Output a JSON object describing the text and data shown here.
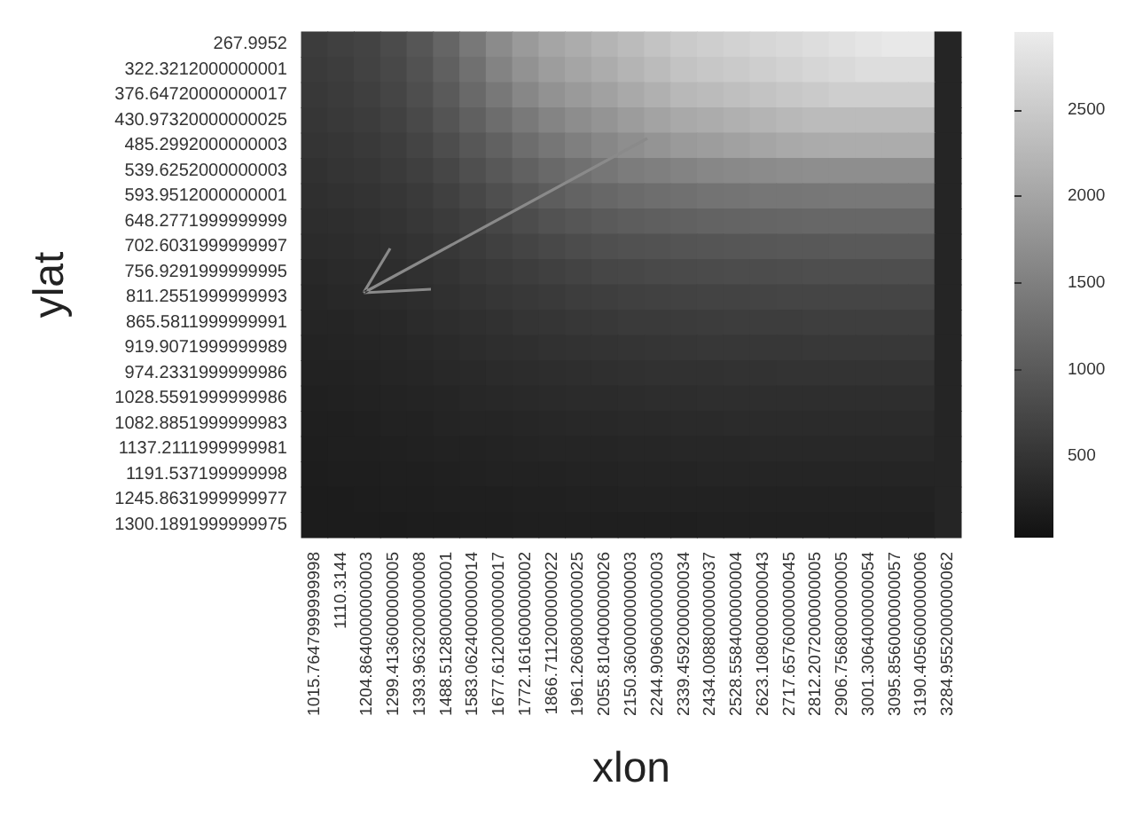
{
  "chart_data": {
    "type": "heatmap",
    "xlabel": "xlon",
    "ylabel": "ylat",
    "categories": [
      "1015.7647999999998",
      "1110.3144",
      "1204.8640000000003",
      "1299.4136000000005",
      "1393.9632000000008",
      "1488.5128000000001",
      "1583.0624000000014",
      "1677.6120000000017",
      "1772.1616000000002",
      "1866.7112000000022",
      "1961.2608000000025",
      "2055.8104000000026",
      "2150.3600000000003",
      "2244.9096000000003",
      "2339.4592000000034",
      "2434.0088000000037",
      "2528.5584000000004",
      "2623.1080000000043",
      "2717.6576000000045",
      "2812.2072000000005",
      "2906.7568000000005",
      "3001.3064000000054",
      "3095.8560000000057",
      "3190.4056000000006",
      "3284.9552000000062"
    ],
    "y_categories": [
      "267.9952",
      "322.3212000000001",
      "376.64720000000017",
      "430.97320000000025",
      "485.2992000000003",
      "539.6252000000003",
      "593.9512000000001",
      "648.2771999999999",
      "702.6031999999997",
      "756.9291999999995",
      "811.2551999999993",
      "865.5811999999991",
      "919.9071999999989",
      "974.2331999999986",
      "1028.5591999999986",
      "1082.8851999999983",
      "1137.2111999999981",
      "1191.537199999998",
      "1245.8631999999977",
      "1300.1891999999975"
    ],
    "cells": [
      [
        600,
        650,
        700,
        800,
        950,
        1150,
        1400,
        1650,
        1850,
        2000,
        2100,
        2200,
        2300,
        2400,
        2500,
        2550,
        2600,
        2650,
        2700,
        2750,
        2800,
        2850,
        2900,
        2900,
        300
      ],
      [
        580,
        620,
        680,
        760,
        900,
        1080,
        1300,
        1550,
        1750,
        1900,
        2000,
        2100,
        2200,
        2300,
        2400,
        2450,
        2500,
        2550,
        2600,
        2650,
        2700,
        2750,
        2750,
        2750,
        300
      ],
      [
        550,
        590,
        640,
        720,
        840,
        1000,
        1200,
        1400,
        1600,
        1750,
        1850,
        1950,
        2050,
        2150,
        2250,
        2300,
        2350,
        2400,
        2450,
        2500,
        2550,
        2550,
        2550,
        2550,
        300
      ],
      [
        520,
        560,
        600,
        670,
        780,
        920,
        1080,
        1250,
        1420,
        1560,
        1680,
        1780,
        1880,
        1980,
        2050,
        2100,
        2150,
        2200,
        2250,
        2300,
        2300,
        2300,
        2300,
        2300,
        300
      ],
      [
        490,
        520,
        560,
        620,
        710,
        830,
        960,
        1100,
        1250,
        1380,
        1500,
        1600,
        1700,
        1780,
        1850,
        1900,
        1950,
        2000,
        2050,
        2080,
        2100,
        2100,
        2100,
        2100,
        300
      ],
      [
        460,
        490,
        520,
        570,
        640,
        740,
        850,
        970,
        1090,
        1200,
        1300,
        1380,
        1450,
        1500,
        1550,
        1600,
        1630,
        1660,
        1680,
        1700,
        1700,
        1700,
        1700,
        1700,
        300
      ],
      [
        430,
        450,
        480,
        520,
        580,
        660,
        750,
        850,
        950,
        1040,
        1120,
        1180,
        1230,
        1270,
        1300,
        1330,
        1350,
        1370,
        1380,
        1390,
        1400,
        1400,
        1400,
        1400,
        300
      ],
      [
        400,
        420,
        440,
        480,
        530,
        590,
        660,
        740,
        820,
        890,
        950,
        1000,
        1040,
        1070,
        1100,
        1120,
        1140,
        1150,
        1160,
        1170,
        1180,
        1180,
        1180,
        1180,
        300
      ],
      [
        370,
        390,
        410,
        440,
        480,
        530,
        590,
        650,
        710,
        760,
        810,
        850,
        880,
        900,
        920,
        940,
        950,
        960,
        970,
        980,
        990,
        990,
        990,
        990,
        300
      ],
      [
        340,
        360,
        380,
        400,
        440,
        480,
        530,
        580,
        620,
        660,
        700,
        730,
        750,
        770,
        790,
        800,
        810,
        820,
        830,
        840,
        840,
        840,
        840,
        840,
        300
      ],
      [
        310,
        330,
        350,
        370,
        400,
        440,
        480,
        520,
        550,
        580,
        610,
        630,
        650,
        670,
        680,
        690,
        700,
        710,
        720,
        720,
        720,
        720,
        720,
        720,
        300
      ],
      [
        290,
        300,
        320,
        340,
        370,
        400,
        430,
        460,
        490,
        510,
        530,
        550,
        570,
        580,
        590,
        600,
        610,
        620,
        620,
        630,
        630,
        630,
        630,
        630,
        300
      ],
      [
        270,
        280,
        300,
        310,
        340,
        360,
        390,
        410,
        430,
        450,
        470,
        480,
        500,
        510,
        520,
        530,
        530,
        540,
        540,
        550,
        550,
        550,
        550,
        550,
        300
      ],
      [
        250,
        260,
        270,
        290,
        310,
        330,
        350,
        370,
        390,
        400,
        420,
        430,
        440,
        450,
        460,
        460,
        470,
        470,
        480,
        480,
        480,
        480,
        480,
        480,
        300
      ],
      [
        230,
        240,
        250,
        270,
        280,
        300,
        320,
        330,
        350,
        360,
        370,
        380,
        390,
        400,
        400,
        410,
        410,
        420,
        420,
        420,
        420,
        420,
        420,
        420,
        300
      ],
      [
        210,
        220,
        230,
        250,
        260,
        280,
        290,
        300,
        310,
        320,
        330,
        340,
        350,
        350,
        360,
        360,
        370,
        370,
        370,
        370,
        370,
        370,
        370,
        370,
        300
      ],
      [
        200,
        210,
        220,
        230,
        240,
        250,
        260,
        270,
        280,
        290,
        300,
        300,
        310,
        310,
        320,
        320,
        320,
        330,
        330,
        330,
        330,
        330,
        330,
        330,
        300
      ],
      [
        190,
        200,
        200,
        210,
        220,
        230,
        240,
        250,
        250,
        260,
        270,
        270,
        280,
        280,
        280,
        290,
        290,
        290,
        290,
        290,
        290,
        290,
        290,
        290,
        300
      ],
      [
        180,
        180,
        190,
        200,
        200,
        210,
        220,
        220,
        230,
        230,
        240,
        240,
        250,
        250,
        250,
        250,
        260,
        260,
        260,
        260,
        260,
        260,
        260,
        260,
        300
      ],
      [
        170,
        170,
        180,
        180,
        190,
        190,
        200,
        200,
        210,
        210,
        210,
        220,
        220,
        220,
        220,
        230,
        230,
        230,
        230,
        230,
        230,
        230,
        230,
        230,
        300
      ]
    ],
    "clim": [
      30,
      2950
    ],
    "cticks": [
      500,
      1000,
      1500,
      2000,
      2500
    ]
  }
}
